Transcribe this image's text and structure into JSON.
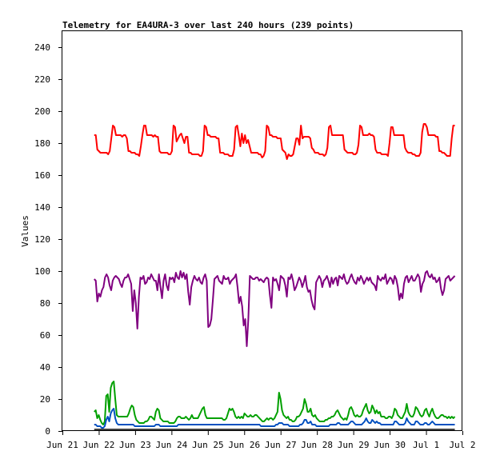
{
  "chart_data": {
    "type": "line",
    "title": "Telemetry for EA4URA-3 over last 240 hours (239 points)",
    "xlabel": "",
    "ylabel": "Values",
    "ylim": [
      0,
      250
    ],
    "yticks": [
      0,
      20,
      40,
      60,
      80,
      100,
      120,
      140,
      160,
      180,
      200,
      220,
      240
    ],
    "xlim": [
      "2023-06-21",
      "2023-07-02"
    ],
    "xtick_labels": [
      "Jun 21",
      "Jun 22",
      "Jun 23",
      "Jun 24",
      "Jun 25",
      "Jun 26",
      "Jun 27",
      "Jun 28",
      "Jun 29",
      "Jun 30",
      "Jul 1",
      "Jul 2"
    ],
    "grid": false,
    "legend": "none",
    "series": [
      {
        "color": "#ff0000",
        "values": [
          185,
          185,
          176,
          175,
          174,
          174,
          174,
          174,
          174,
          173,
          175,
          183,
          191,
          190,
          185,
          185,
          185,
          185,
          184,
          185,
          185,
          183,
          175,
          175,
          174,
          174,
          174,
          173,
          173,
          172,
          178,
          185,
          191,
          191,
          185,
          185,
          185,
          185,
          184,
          185,
          184,
          184,
          175,
          174,
          174,
          174,
          174,
          174,
          173,
          173,
          175,
          191,
          190,
          181,
          183,
          185,
          186,
          183,
          180,
          184,
          184,
          174,
          174,
          173,
          173,
          173,
          173,
          173,
          172,
          172,
          175,
          191,
          190,
          185,
          185,
          184,
          184,
          184,
          184,
          183,
          183,
          174,
          174,
          174,
          173,
          173,
          173,
          172,
          172,
          172,
          176,
          190,
          191,
          185,
          178,
          186,
          180,
          185,
          180,
          182,
          178,
          174,
          174,
          174,
          174,
          174,
          173,
          173,
          171,
          172,
          175,
          191,
          190,
          185,
          185,
          184,
          184,
          184,
          183,
          183,
          183,
          176,
          175,
          174,
          170,
          173,
          172,
          172,
          173,
          178,
          183,
          183,
          179,
          191,
          183,
          184,
          184,
          184,
          184,
          183,
          177,
          176,
          174,
          174,
          174,
          173,
          173,
          173,
          172,
          173,
          177,
          190,
          191,
          185,
          185,
          185,
          185,
          185,
          185,
          185,
          185,
          176,
          175,
          174,
          174,
          174,
          174,
          173,
          173,
          174,
          179,
          191,
          190,
          185,
          185,
          185,
          185,
          186,
          185,
          185,
          184,
          176,
          174,
          174,
          174,
          173,
          173,
          173,
          173,
          172,
          180,
          190,
          190,
          185,
          185,
          185,
          185,
          185,
          185,
          185,
          177,
          175,
          174,
          174,
          174,
          173,
          173,
          172,
          172,
          172,
          174,
          187,
          192,
          192,
          190,
          185,
          185,
          185,
          185,
          185,
          184,
          184,
          175,
          175,
          174,
          174,
          173,
          172,
          172,
          172,
          183,
          191,
          191
        ]
      },
      {
        "color": "#800080",
        "values": [
          95,
          94,
          81,
          86,
          84,
          88,
          90,
          96,
          98,
          96,
          91,
          88,
          94,
          96,
          97,
          96,
          95,
          92,
          90,
          94,
          96,
          96,
          98,
          95,
          92,
          75,
          88,
          80,
          64,
          84,
          96,
          95,
          97,
          92,
          93,
          96,
          95,
          98,
          96,
          94,
          94,
          88,
          98,
          90,
          83,
          94,
          98,
          91,
          88,
          96,
          95,
          96,
          93,
          99,
          96,
          95,
          100,
          96,
          99,
          95,
          98,
          87,
          79,
          90,
          94,
          97,
          95,
          94,
          96,
          93,
          92,
          96,
          98,
          94,
          65,
          66,
          70,
          82,
          95,
          96,
          97,
          94,
          93,
          92,
          97,
          95,
          95,
          96,
          92,
          94,
          95,
          96,
          98,
          90,
          80,
          84,
          78,
          66,
          70,
          53,
          70,
          97,
          96,
          95,
          95,
          96,
          96,
          94,
          95,
          94,
          93,
          95,
          96,
          95,
          85,
          77,
          96,
          94,
          95,
          92,
          88,
          97,
          96,
          95,
          91,
          84,
          96,
          95,
          98,
          94,
          88,
          90,
          93,
          96,
          94,
          90,
          93,
          97,
          90,
          87,
          88,
          82,
          78,
          76,
          93,
          95,
          97,
          95,
          90,
          94,
          95,
          97,
          94,
          90,
          96,
          92,
          95,
          96,
          91,
          97,
          96,
          95,
          98,
          94,
          92,
          93,
          96,
          98,
          95,
          93,
          92,
          96,
          94,
          97,
          95,
          92,
          94,
          96,
          94,
          96,
          93,
          92,
          91,
          88,
          97,
          95,
          94,
          96,
          95,
          98,
          92,
          94,
          96,
          95,
          92,
          97,
          95,
          90,
          82,
          86,
          83,
          92,
          96,
          97,
          93,
          95,
          97,
          94,
          94,
          96,
          98,
          96,
          87,
          92,
          94,
          99,
          100,
          97,
          96,
          98,
          95,
          96,
          93,
          94,
          96,
          89,
          85,
          88,
          95,
          96,
          97,
          94,
          95,
          96,
          97
        ]
      },
      {
        "color": "#00a000",
        "values": [
          12,
          13,
          8,
          10,
          7,
          5,
          4,
          6,
          22,
          23,
          12,
          27,
          30,
          31,
          20,
          10,
          9,
          9,
          9,
          9,
          9,
          9,
          9,
          11,
          14,
          16,
          15,
          10,
          7,
          6,
          5,
          5,
          5,
          5,
          6,
          6,
          7,
          9,
          9,
          8,
          7,
          12,
          14,
          13,
          8,
          7,
          6,
          6,
          6,
          6,
          5,
          5,
          5,
          5,
          6,
          8,
          9,
          9,
          8,
          8,
          8,
          9,
          8,
          7,
          8,
          10,
          8,
          8,
          8,
          8,
          10,
          12,
          14,
          15,
          10,
          8,
          8,
          8,
          8,
          8,
          8,
          8,
          8,
          8,
          8,
          8,
          7,
          7,
          8,
          11,
          14,
          13,
          14,
          12,
          9,
          8,
          9,
          8,
          9,
          8,
          11,
          10,
          9,
          9,
          10,
          9,
          9,
          10,
          10,
          9,
          8,
          7,
          6,
          6,
          7,
          8,
          7,
          8,
          8,
          7,
          8,
          10,
          12,
          24,
          20,
          13,
          10,
          9,
          8,
          9,
          7,
          7,
          6,
          6,
          7,
          9,
          9,
          10,
          12,
          14,
          20,
          17,
          12,
          12,
          14,
          10,
          9,
          10,
          8,
          7,
          6,
          6,
          6,
          6,
          7,
          7,
          8,
          8,
          9,
          9,
          10,
          12,
          13,
          11,
          9,
          8,
          7,
          8,
          7,
          10,
          14,
          15,
          13,
          10,
          9,
          10,
          9,
          9,
          10,
          13,
          15,
          17,
          13,
          11,
          12,
          16,
          14,
          11,
          13,
          11,
          12,
          9,
          9,
          9,
          8,
          8,
          9,
          9,
          8,
          10,
          14,
          13,
          10,
          9,
          8,
          8,
          10,
          12,
          17,
          12,
          10,
          9,
          9,
          11,
          15,
          14,
          12,
          10,
          9,
          10,
          13,
          14,
          11,
          9,
          12,
          14,
          11,
          9,
          8,
          8,
          9,
          10,
          10,
          9,
          9,
          8,
          9,
          8,
          9,
          8,
          9
        ]
      },
      {
        "color": "#0050c0",
        "values": [
          4,
          4,
          3,
          3,
          3,
          2,
          2,
          3,
          7,
          9,
          6,
          11,
          13,
          14,
          8,
          5,
          4,
          4,
          4,
          4,
          4,
          4,
          4,
          4,
          4,
          4,
          4,
          3,
          3,
          3,
          3,
          3,
          3,
          3,
          3,
          3,
          3,
          3,
          3,
          3,
          3,
          4,
          4,
          4,
          3,
          3,
          3,
          3,
          3,
          3,
          3,
          3,
          3,
          3,
          3,
          3,
          4,
          4,
          4,
          4,
          4,
          4,
          4,
          4,
          4,
          4,
          4,
          4,
          4,
          4,
          4,
          4,
          4,
          4,
          4,
          4,
          4,
          4,
          4,
          4,
          4,
          4,
          4,
          4,
          4,
          4,
          4,
          4,
          4,
          4,
          4,
          4,
          4,
          4,
          4,
          4,
          4,
          4,
          4,
          4,
          4,
          4,
          4,
          4,
          4,
          4,
          4,
          4,
          4,
          4,
          4,
          3,
          3,
          3,
          3,
          3,
          3,
          3,
          3,
          3,
          3,
          4,
          4,
          5,
          5,
          5,
          4,
          4,
          4,
          4,
          3,
          3,
          3,
          3,
          3,
          3,
          3,
          4,
          4,
          5,
          7,
          7,
          5,
          5,
          6,
          4,
          4,
          4,
          3,
          3,
          3,
          3,
          3,
          3,
          3,
          3,
          3,
          4,
          4,
          4,
          4,
          4,
          5,
          5,
          4,
          4,
          4,
          4,
          4,
          4,
          5,
          6,
          6,
          5,
          4,
          4,
          4,
          4,
          4,
          5,
          6,
          8,
          6,
          5,
          5,
          7,
          6,
          5,
          6,
          5,
          5,
          4,
          4,
          4,
          4,
          4,
          4,
          4,
          4,
          4,
          6,
          6,
          5,
          4,
          4,
          4,
          4,
          5,
          8,
          6,
          5,
          4,
          4,
          4,
          6,
          6,
          5,
          4,
          4,
          4,
          5,
          5,
          4,
          4,
          5,
          6,
          5,
          4,
          4,
          4,
          4,
          4,
          4,
          4,
          4,
          4,
          4,
          4,
          4,
          4,
          4
        ]
      },
      {
        "color": "#000000",
        "values": [
          1,
          1,
          1,
          1,
          1,
          1,
          1,
          1,
          1,
          1,
          1,
          1,
          1,
          1,
          1,
          1,
          1,
          1,
          1,
          1,
          1,
          1,
          1,
          1,
          1,
          1,
          1,
          1,
          1,
          1,
          1,
          1,
          1,
          1,
          1,
          1,
          1,
          1,
          1,
          1,
          1,
          1,
          1,
          1,
          1,
          1,
          1,
          1,
          1,
          1,
          1,
          1,
          1,
          1,
          1,
          1,
          1,
          1,
          1,
          1,
          1,
          1,
          1,
          1,
          1,
          1,
          1,
          1,
          1,
          1,
          1,
          1,
          1,
          1,
          1,
          1,
          1,
          1,
          1,
          1,
          1,
          1,
          1,
          1,
          1,
          1,
          1,
          1,
          1,
          1,
          1,
          1,
          1,
          1,
          1,
          1,
          1,
          1,
          1,
          1,
          1,
          1,
          1,
          1,
          1,
          1,
          1,
          1,
          1,
          1,
          1,
          1,
          1,
          1,
          1,
          1,
          1,
          1,
          1,
          1,
          1,
          1,
          1,
          1,
          1,
          1,
          1,
          1,
          1,
          1,
          1,
          1,
          1,
          1,
          1,
          1,
          1,
          1,
          1,
          1,
          1,
          1,
          1,
          1,
          1,
          1,
          1,
          1,
          1,
          1,
          1,
          1,
          1,
          1,
          1,
          1,
          1,
          1,
          1,
          1,
          1,
          1,
          1,
          1,
          1,
          1,
          1,
          1,
          1,
          1,
          1,
          1,
          1,
          1,
          1,
          1,
          1,
          1,
          1,
          1,
          1,
          1,
          1,
          1,
          1,
          1,
          1,
          1,
          1,
          1,
          1,
          1,
          1,
          1,
          1,
          1,
          1,
          1,
          1,
          1,
          1,
          1,
          1,
          1,
          1,
          1,
          1,
          1,
          1,
          1,
          1,
          1,
          1,
          1,
          1,
          1,
          1,
          1,
          1,
          1,
          1,
          1,
          1,
          1,
          1,
          1,
          1,
          1,
          1,
          1,
          1,
          1,
          1,
          1,
          1,
          1,
          1,
          1,
          1
        ]
      }
    ],
    "x_range_of_series": [
      "2023-06-21 21:00",
      "2023-07-01 19:00"
    ]
  }
}
